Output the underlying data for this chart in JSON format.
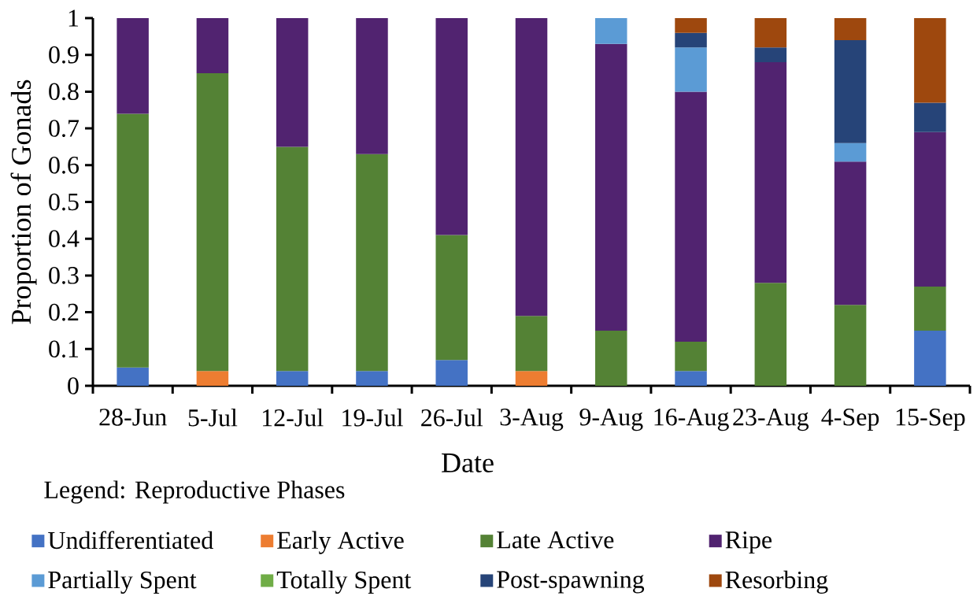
{
  "chart_data": {
    "type": "bar",
    "stacked": true,
    "xlabel": "Date",
    "ylabel": "Proportion of Gonads",
    "legend_title": "Legend: Reproductive Phases",
    "legend": "bottom",
    "categories": [
      "28-Jun",
      "5-Jul",
      "12-Jul",
      "19-Jul",
      "26-Jul",
      "3-Aug",
      "9-Aug",
      "16-Aug",
      "23-Aug",
      "4-Sep",
      "15-Sep"
    ],
    "ylim": [
      0,
      1
    ],
    "yticks": [
      0,
      0.1,
      0.2,
      0.3,
      0.4,
      0.5,
      0.6,
      0.7,
      0.8,
      0.9,
      1
    ],
    "series": [
      {
        "name": "Undifferentiated",
        "color": "#4472c4",
        "values": [
          0.05,
          null,
          0.04,
          0.04,
          0.07,
          null,
          null,
          0.04,
          null,
          null,
          0.15
        ]
      },
      {
        "name": "Early Active",
        "color": "#ed7d31",
        "values": [
          null,
          0.04,
          null,
          null,
          null,
          0.04,
          null,
          null,
          null,
          null,
          null
        ]
      },
      {
        "name": "Late Active",
        "color": "#548235",
        "values": [
          0.69,
          0.81,
          0.61,
          0.59,
          0.34,
          0.15,
          0.15,
          0.08,
          0.28,
          0.22,
          0.12
        ]
      },
      {
        "name": "Ripe",
        "color": "#512370",
        "values": [
          0.26,
          0.15,
          0.35,
          0.37,
          0.59,
          0.81,
          0.78,
          0.68,
          0.6,
          0.39,
          0.42
        ]
      },
      {
        "name": "Partially Spent",
        "color": "#5b9bd5",
        "values": [
          null,
          null,
          null,
          null,
          null,
          null,
          0.07,
          0.12,
          null,
          0.05,
          null
        ]
      },
      {
        "name": "Totally Spent",
        "color": "#70ad47",
        "values": [
          null,
          null,
          null,
          null,
          null,
          null,
          null,
          null,
          null,
          null,
          null
        ]
      },
      {
        "name": "Post-spawning",
        "color": "#264478",
        "values": [
          null,
          null,
          null,
          null,
          null,
          null,
          null,
          0.04,
          0.04,
          0.28,
          0.08
        ]
      },
      {
        "name": "Resorbing",
        "color": "#9e480e",
        "values": [
          null,
          null,
          null,
          null,
          null,
          null,
          null,
          0.04,
          0.08,
          0.06,
          0.23
        ]
      }
    ]
  }
}
